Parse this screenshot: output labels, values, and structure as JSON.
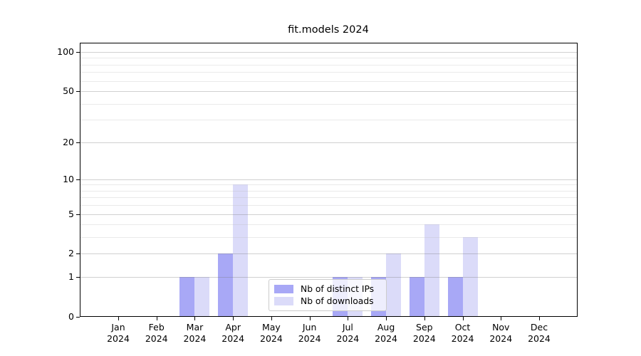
{
  "title": "fit.models 2024",
  "chart_data": {
    "type": "bar",
    "title": "fit.models 2024",
    "categories": [
      "Jan",
      "Feb",
      "Mar",
      "Apr",
      "May",
      "Jun",
      "Jul",
      "Aug",
      "Sep",
      "Oct",
      "Nov",
      "Dec"
    ],
    "tick_year": "2024",
    "series": [
      {
        "name": "Nb of distinct IPs",
        "color": "#a8a8f6",
        "values": [
          0,
          0,
          1,
          2,
          0,
          0,
          1,
          1,
          1,
          1,
          0,
          0
        ]
      },
      {
        "name": "Nb of downloads",
        "color": "#dbdbf9",
        "values": [
          0,
          0,
          1,
          9,
          0,
          0,
          1,
          2,
          4,
          3,
          0,
          0
        ]
      }
    ],
    "xlabel": "",
    "ylabel": "",
    "yscale": "log1p",
    "ylim": [
      0,
      117.6
    ],
    "ytick_values": [
      0,
      1,
      2,
      5,
      10,
      20,
      50,
      100
    ],
    "ytick_labels": [
      "0",
      "1",
      "2",
      "5",
      "10",
      "20",
      "50",
      "100"
    ],
    "minor_gridline_values": [
      3,
      4,
      6,
      7,
      8,
      9,
      30,
      40,
      60,
      70,
      80,
      90
    ],
    "grid": "horizontal",
    "legend_position": "lower-center-inside",
    "background_color": "#ffffff",
    "major_grid_color": "#d0d0d0",
    "minor_grid_color": "#e9e9e9"
  }
}
